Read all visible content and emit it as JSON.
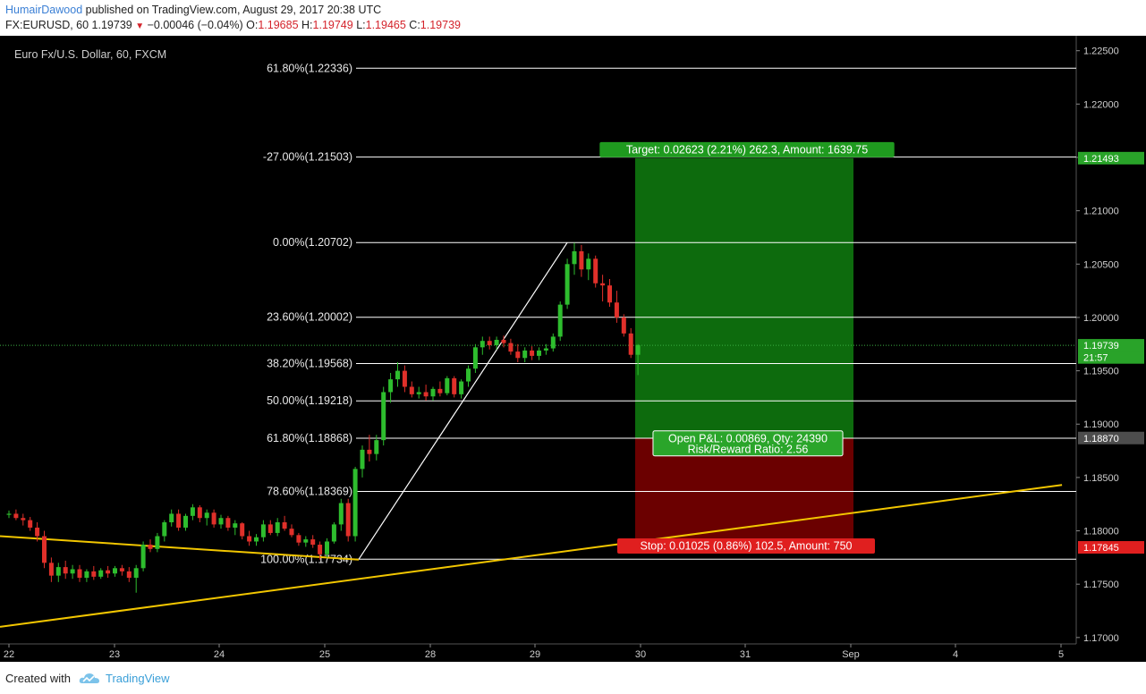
{
  "header": {
    "author": "HumairDawood",
    "published_text": " published on TradingView.com, August 29, 2017 20:38 UTC",
    "symbol_prefix": "FX:EURUSD, 60  1.19739",
    "change": "−0.00046 (−0.04%)",
    "o_label": "O:",
    "o_val": "1.19685",
    "h_label": "H:",
    "h_val": "1.19749",
    "l_label": "L:",
    "l_val": "1.19465",
    "c_label": "C:",
    "c_val": "1.19739"
  },
  "footer": {
    "created_with": "Created with",
    "brand": "TradingView"
  },
  "colors": {
    "background": "#000000",
    "bull": "#26a69a",
    "bear": "#ef5350",
    "bull_candle": "#2ebd2e",
    "bear_candle": "#e0302a",
    "trendline": "#f2c600",
    "target_zone": "#0d6b0d",
    "stop_zone": "#6b0000",
    "fib_line": "#ffffff",
    "price_label_green": "#29a329",
    "price_label_red": "#e01f1f",
    "price_label_gray": "#4d4d4d"
  },
  "chart_data": {
    "type": "candlestick",
    "title": "Euro Fx/U.S. Dollar, 60, FXCM",
    "ylim": [
      1.1694,
      1.2264
    ],
    "y_ticks": [
      "1.22500",
      "1.22000",
      "1.21500",
      "1.21000",
      "1.20500",
      "1.20000",
      "1.19500",
      "1.19000",
      "1.18500",
      "1.18000",
      "1.17500",
      "1.17000"
    ],
    "x_ticks": [
      "22",
      "23",
      "24",
      "25",
      "28",
      "29",
      "30",
      "31",
      "Sep",
      "4",
      "5"
    ],
    "fib_levels": [
      {
        "label": "61.80%(1.22336)",
        "price": 1.22336
      },
      {
        "label": "-27.00%(1.21503)",
        "price": 1.21503
      },
      {
        "label": "0.00%(1.20702)",
        "price": 1.20702
      },
      {
        "label": "23.60%(1.20002)",
        "price": 1.20002
      },
      {
        "label": "38.20%(1.19568)",
        "price": 1.19568
      },
      {
        "label": "50.00%(1.19218)",
        "price": 1.19218
      },
      {
        "label": "61.80%(1.18868)",
        "price": 1.18868
      },
      {
        "label": "78.60%(1.18369)",
        "price": 1.18369
      },
      {
        "label": "100.00%(1.17734)",
        "price": 1.17734
      }
    ],
    "price_labels": [
      {
        "text": "1.21493",
        "price": 1.21493,
        "kind": "green"
      },
      {
        "text": "1.19739",
        "price": 1.19739,
        "kind": "green"
      },
      {
        "text": "21:57",
        "price": 1.19625,
        "kind": "green"
      },
      {
        "text": "1.18870",
        "price": 1.1887,
        "kind": "gray"
      },
      {
        "text": "1.17845",
        "price": 1.17845,
        "kind": "red"
      }
    ],
    "position": {
      "entry": 1.1887,
      "target": 1.21493,
      "stop": 1.17845,
      "target_text": "Target: 0.02623 (2.21%) 262.3, Amount: 1639.75",
      "pnl_text": "Open P&L: 0.00869, Qty: 24390",
      "rr_text": "Risk/Reward Ratio: 2.56",
      "stop_text": "Stop: 0.01025 (0.86%) 102.5, Amount: 750"
    },
    "last_price": 1.19739,
    "candles": [
      [
        1.1815,
        1.1819,
        1.1812,
        1.1816
      ],
      [
        1.1816,
        1.182,
        1.181,
        1.1812
      ],
      [
        1.1812,
        1.1816,
        1.1805,
        1.181
      ],
      [
        1.181,
        1.1813,
        1.18,
        1.1803
      ],
      [
        1.1803,
        1.1808,
        1.179,
        1.1795
      ],
      [
        1.1795,
        1.18,
        1.1765,
        1.177
      ],
      [
        1.177,
        1.1775,
        1.1752,
        1.1758
      ],
      [
        1.1758,
        1.177,
        1.1752,
        1.1766
      ],
      [
        1.1766,
        1.1772,
        1.1755,
        1.176
      ],
      [
        1.176,
        1.1768,
        1.1755,
        1.1764
      ],
      [
        1.1764,
        1.1768,
        1.1752,
        1.1756
      ],
      [
        1.1756,
        1.1764,
        1.1752,
        1.1762
      ],
      [
        1.1762,
        1.1767,
        1.1754,
        1.1757
      ],
      [
        1.1757,
        1.1765,
        1.1755,
        1.1763
      ],
      [
        1.1763,
        1.1767,
        1.1756,
        1.176
      ],
      [
        1.176,
        1.1767,
        1.1757,
        1.1765
      ],
      [
        1.1765,
        1.1768,
        1.1758,
        1.1762
      ],
      [
        1.1762,
        1.1766,
        1.1752,
        1.1756
      ],
      [
        1.1756,
        1.1768,
        1.1742,
        1.1765
      ],
      [
        1.1765,
        1.179,
        1.1762,
        1.1787
      ],
      [
        1.1787,
        1.1792,
        1.178,
        1.1783
      ],
      [
        1.1783,
        1.1798,
        1.178,
        1.1795
      ],
      [
        1.1795,
        1.181,
        1.179,
        1.1808
      ],
      [
        1.1808,
        1.182,
        1.1804,
        1.1816
      ],
      [
        1.1816,
        1.182,
        1.18,
        1.1803
      ],
      [
        1.1803,
        1.1816,
        1.18,
        1.1814
      ],
      [
        1.1814,
        1.1825,
        1.181,
        1.1822
      ],
      [
        1.1822,
        1.1824,
        1.1808,
        1.1812
      ],
      [
        1.1812,
        1.182,
        1.1805,
        1.1817
      ],
      [
        1.1817,
        1.182,
        1.1803,
        1.1806
      ],
      [
        1.1806,
        1.1815,
        1.1802,
        1.1812
      ],
      [
        1.1812,
        1.1814,
        1.18,
        1.1803
      ],
      [
        1.1803,
        1.181,
        1.1796,
        1.1807
      ],
      [
        1.1807,
        1.1808,
        1.1792,
        1.1795
      ],
      [
        1.1795,
        1.18,
        1.1786,
        1.179
      ],
      [
        1.179,
        1.1797,
        1.1786,
        1.1794
      ],
      [
        1.1794,
        1.181,
        1.179,
        1.1806
      ],
      [
        1.1806,
        1.181,
        1.1796,
        1.1798
      ],
      [
        1.1798,
        1.1812,
        1.1795,
        1.1808
      ],
      [
        1.1808,
        1.1814,
        1.18,
        1.1802
      ],
      [
        1.1802,
        1.1806,
        1.1794,
        1.1796
      ],
      [
        1.1796,
        1.1798,
        1.1786,
        1.1789
      ],
      [
        1.1789,
        1.1795,
        1.1785,
        1.1792
      ],
      [
        1.1792,
        1.1796,
        1.1784,
        1.1787
      ],
      [
        1.1787,
        1.179,
        1.1773,
        1.1778
      ],
      [
        1.1778,
        1.1793,
        1.1775,
        1.179
      ],
      [
        1.179,
        1.1808,
        1.1788,
        1.1806
      ],
      [
        1.1806,
        1.183,
        1.18,
        1.1826
      ],
      [
        1.1826,
        1.183,
        1.179,
        1.1795
      ],
      [
        1.1795,
        1.186,
        1.179,
        1.1858
      ],
      [
        1.1858,
        1.188,
        1.185,
        1.1876
      ],
      [
        1.1876,
        1.189,
        1.1865,
        1.1872
      ],
      [
        1.1872,
        1.189,
        1.1866,
        1.1885
      ],
      [
        1.1885,
        1.1935,
        1.188,
        1.193
      ],
      [
        1.193,
        1.1948,
        1.192,
        1.1942
      ],
      [
        1.1942,
        1.1958,
        1.1935,
        1.195
      ],
      [
        1.195,
        1.1955,
        1.193,
        1.1935
      ],
      [
        1.1935,
        1.194,
        1.1925,
        1.1928
      ],
      [
        1.1928,
        1.1935,
        1.1924,
        1.193
      ],
      [
        1.193,
        1.1937,
        1.1922,
        1.1926
      ],
      [
        1.1926,
        1.1935,
        1.1922,
        1.1933
      ],
      [
        1.1933,
        1.194,
        1.1926,
        1.1929
      ],
      [
        1.1929,
        1.1945,
        1.1927,
        1.1943
      ],
      [
        1.1943,
        1.1945,
        1.1925,
        1.1928
      ],
      [
        1.1928,
        1.1942,
        1.1924,
        1.194
      ],
      [
        1.194,
        1.1955,
        1.1935,
        1.1952
      ],
      [
        1.1952,
        1.1975,
        1.1948,
        1.1972
      ],
      [
        1.1972,
        1.1982,
        1.1965,
        1.1978
      ],
      [
        1.1978,
        1.1982,
        1.197,
        1.1974
      ],
      [
        1.1974,
        1.1982,
        1.197,
        1.1979
      ],
      [
        1.1979,
        1.1983,
        1.1972,
        1.1976
      ],
      [
        1.1976,
        1.198,
        1.1965,
        1.1968
      ],
      [
        1.1968,
        1.1975,
        1.1958,
        1.1962
      ],
      [
        1.1962,
        1.1972,
        1.1958,
        1.1969
      ],
      [
        1.1969,
        1.1973,
        1.196,
        1.1964
      ],
      [
        1.1964,
        1.1972,
        1.196,
        1.1969
      ],
      [
        1.1969,
        1.1975,
        1.1965,
        1.1971
      ],
      [
        1.1971,
        1.1985,
        1.1968,
        1.1982
      ],
      [
        1.1982,
        1.2015,
        1.1978,
        1.2012
      ],
      [
        1.2012,
        1.2055,
        1.2008,
        1.205
      ],
      [
        1.205,
        1.207,
        1.204,
        1.2062
      ],
      [
        1.2062,
        1.2068,
        1.2038,
        1.2045
      ],
      [
        1.2045,
        1.206,
        1.2035,
        1.2055
      ],
      [
        1.2055,
        1.2058,
        1.2028,
        1.2032
      ],
      [
        1.2032,
        1.204,
        1.2015,
        1.203
      ],
      [
        1.203,
        1.2036,
        1.201,
        1.2014
      ],
      [
        1.2014,
        1.2025,
        1.1995,
        1.2
      ],
      [
        1.2,
        1.2003,
        1.1982,
        1.1985
      ],
      [
        1.1985,
        1.199,
        1.1962,
        1.1965
      ],
      [
        1.1965,
        1.1975,
        1.1946,
        1.1974
      ]
    ],
    "trendlines": [
      {
        "from": [
          0,
          1.1795
        ],
        "to": [
          49.5,
          1.1773
        ],
        "color": "yellow"
      },
      {
        "from": [
          0,
          1.171
        ],
        "to": [
          149,
          1.1843
        ],
        "color": "yellow"
      },
      {
        "from": [
          49.5,
          1.17734
        ],
        "to": [
          79,
          1.20702
        ],
        "color": "white"
      }
    ]
  }
}
